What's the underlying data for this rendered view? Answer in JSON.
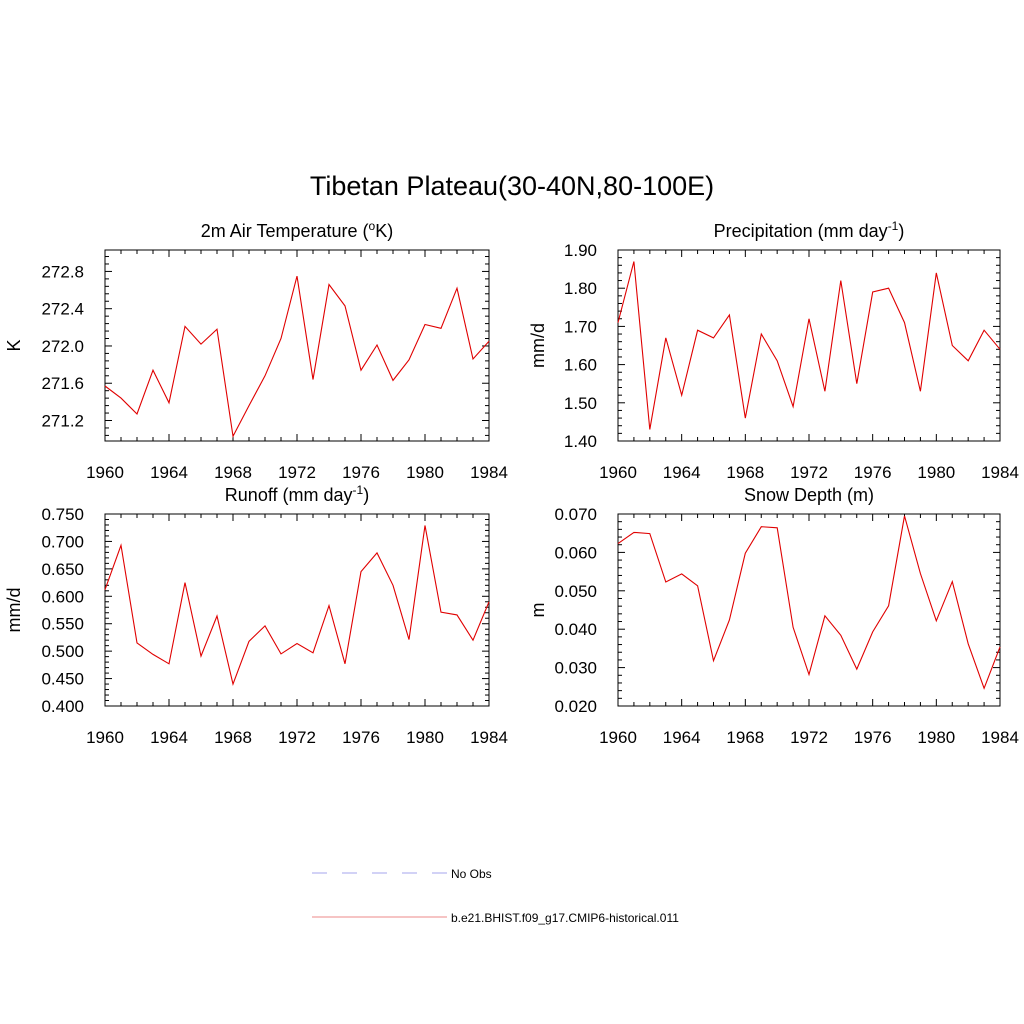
{
  "figure": {
    "title": "Tibetan Plateau(30-40N,80-100E)"
  },
  "legend": {
    "items": [
      {
        "label": "No Obs",
        "color": "#b8b8f0",
        "style": "dashed"
      },
      {
        "label": "b.e21.BHIST.f09_g17.CMIP6-historical.011",
        "color": "#f0a0a0",
        "style": "solid"
      }
    ]
  },
  "chart_data": [
    {
      "type": "line",
      "title_main": "2m Air Temperature (",
      "title_sup": "o",
      "title_tail": "K)",
      "ylabel": "K",
      "xlim": [
        1960,
        1984
      ],
      "ylim": [
        270.98,
        273.03
      ],
      "xticks": [
        1960,
        1964,
        1968,
        1972,
        1976,
        1980,
        1984
      ],
      "yticks": [
        271.2,
        271.6,
        272.0,
        272.4,
        272.8
      ],
      "ytick_labels": [
        "271.2",
        "271.6",
        "272.0",
        "272.4",
        "272.8"
      ],
      "series": [
        {
          "color": "#e00000",
          "x": [
            1960,
            1961,
            1962,
            1963,
            1964,
            1965,
            1966,
            1967,
            1968,
            1969,
            1970,
            1971,
            1972,
            1973,
            1974,
            1975,
            1976,
            1977,
            1978,
            1979,
            1980,
            1981,
            1982,
            1983,
            1984
          ],
          "y": [
            271.57,
            271.44,
            271.27,
            271.74,
            271.39,
            272.21,
            272.02,
            272.18,
            271.03,
            271.36,
            271.68,
            272.08,
            272.75,
            271.64,
            272.66,
            272.43,
            271.74,
            272.01,
            271.63,
            271.85,
            272.23,
            272.19,
            272.62,
            271.86,
            272.05
          ]
        }
      ]
    },
    {
      "type": "line",
      "title_main": "Precipitation (mm day",
      "title_sup": "-1",
      "title_tail": ")",
      "ylabel": "mm/d",
      "xlim": [
        1960,
        1984
      ],
      "ylim": [
        1.4,
        1.9
      ],
      "xticks": [
        1960,
        1964,
        1968,
        1972,
        1976,
        1980,
        1984
      ],
      "yticks": [
        1.4,
        1.5,
        1.6,
        1.7,
        1.8,
        1.9
      ],
      "ytick_labels": [
        "1.40",
        "1.50",
        "1.60",
        "1.70",
        "1.80",
        "1.90"
      ],
      "series": [
        {
          "color": "#e00000",
          "x": [
            1960,
            1961,
            1962,
            1963,
            1964,
            1965,
            1966,
            1967,
            1968,
            1969,
            1970,
            1971,
            1972,
            1973,
            1974,
            1975,
            1976,
            1977,
            1978,
            1979,
            1980,
            1981,
            1982,
            1983,
            1984
          ],
          "y": [
            1.71,
            1.87,
            1.43,
            1.67,
            1.52,
            1.69,
            1.67,
            1.73,
            1.46,
            1.68,
            1.61,
            1.49,
            1.72,
            1.53,
            1.82,
            1.55,
            1.79,
            1.8,
            1.71,
            1.53,
            1.84,
            1.65,
            1.61,
            1.69,
            1.64
          ]
        }
      ]
    },
    {
      "type": "line",
      "title_main": "Runoff (mm day",
      "title_sup": "-1",
      "title_tail": ")",
      "ylabel": "mm/d",
      "xlim": [
        1960,
        1984
      ],
      "ylim": [
        0.4,
        0.75
      ],
      "xticks": [
        1960,
        1964,
        1968,
        1972,
        1976,
        1980,
        1984
      ],
      "yticks": [
        0.4,
        0.45,
        0.5,
        0.55,
        0.6,
        0.65,
        0.7,
        0.75
      ],
      "ytick_labels": [
        "0.400",
        "0.450",
        "0.500",
        "0.550",
        "0.600",
        "0.650",
        "0.700",
        "0.750"
      ],
      "series": [
        {
          "color": "#e00000",
          "x": [
            1960,
            1961,
            1962,
            1963,
            1964,
            1965,
            1966,
            1967,
            1968,
            1969,
            1970,
            1971,
            1972,
            1973,
            1974,
            1975,
            1976,
            1977,
            1978,
            1979,
            1980,
            1981,
            1982,
            1983,
            1984
          ],
          "y": [
            0.612,
            0.693,
            0.515,
            0.494,
            0.477,
            0.625,
            0.491,
            0.564,
            0.44,
            0.518,
            0.546,
            0.495,
            0.514,
            0.497,
            0.583,
            0.477,
            0.645,
            0.679,
            0.62,
            0.521,
            0.729,
            0.571,
            0.566,
            0.52,
            0.59
          ]
        }
      ]
    },
    {
      "type": "line",
      "title_main": "Snow Depth (m)",
      "title_sup": "",
      "title_tail": "",
      "ylabel": "m",
      "xlim": [
        1960,
        1984
      ],
      "ylim": [
        0.02,
        0.07
      ],
      "xticks": [
        1960,
        1964,
        1968,
        1972,
        1976,
        1980,
        1984
      ],
      "yticks": [
        0.02,
        0.03,
        0.04,
        0.05,
        0.06,
        0.07
      ],
      "ytick_labels": [
        "0.020",
        "0.030",
        "0.040",
        "0.050",
        "0.060",
        "0.070"
      ],
      "series": [
        {
          "color": "#e00000",
          "x": [
            1960,
            1961,
            1962,
            1963,
            1964,
            1965,
            1966,
            1967,
            1968,
            1969,
            1970,
            1971,
            1972,
            1973,
            1974,
            1975,
            1976,
            1977,
            1978,
            1979,
            1980,
            1981,
            1982,
            1983,
            1984
          ],
          "y": [
            0.0623,
            0.0652,
            0.0649,
            0.0523,
            0.0544,
            0.0513,
            0.0318,
            0.0424,
            0.0598,
            0.0667,
            0.0664,
            0.0405,
            0.0282,
            0.0435,
            0.0384,
            0.0296,
            0.0393,
            0.0461,
            0.0695,
            0.0545,
            0.0422,
            0.0524,
            0.0362,
            0.0246,
            0.0354
          ]
        }
      ]
    }
  ]
}
